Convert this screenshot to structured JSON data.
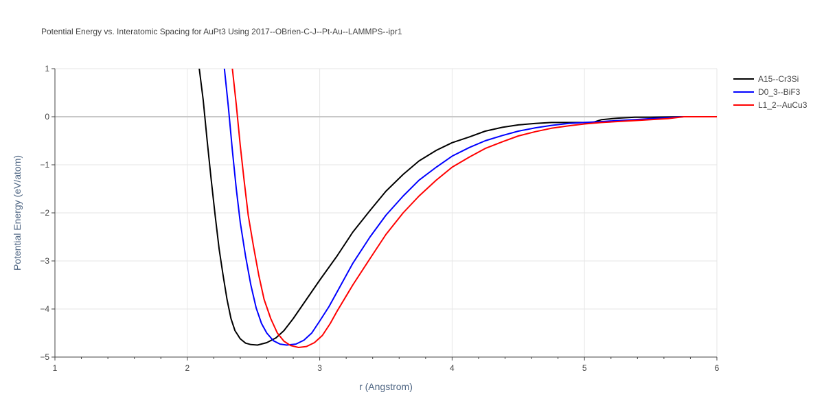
{
  "chart_data": {
    "type": "line",
    "title": "Potential Energy vs. Interatomic Spacing for AuPt3 Using 2017--OBrien-C-J--Pt-Au--LAMMPS--ipr1",
    "xlabel": "r (Angstrom)",
    "ylabel": "Potential Energy (eV/atom)",
    "xlim": [
      1,
      6
    ],
    "ylim": [
      -5,
      1
    ],
    "xticks": [
      1,
      2,
      3,
      4,
      5,
      6
    ],
    "xtick_labels": [
      "1",
      "2",
      "3",
      "4",
      "5",
      "6"
    ],
    "yticks": [
      1,
      0,
      -1,
      -2,
      -3,
      -4,
      -5
    ],
    "ytick_labels": [
      "1",
      "0",
      "−1",
      "−2",
      "−3",
      "−4",
      "−5"
    ],
    "grid": true,
    "legend_position": "top-right",
    "series": [
      {
        "name": "A15--Cr3Si",
        "color": "#000000",
        "points": [
          [
            2.09,
            1.0
          ],
          [
            2.12,
            0.35
          ],
          [
            2.15,
            -0.5
          ],
          [
            2.18,
            -1.3
          ],
          [
            2.21,
            -2.05
          ],
          [
            2.24,
            -2.75
          ],
          [
            2.27,
            -3.3
          ],
          [
            2.3,
            -3.8
          ],
          [
            2.33,
            -4.2
          ],
          [
            2.36,
            -4.45
          ],
          [
            2.4,
            -4.62
          ],
          [
            2.44,
            -4.71
          ],
          [
            2.48,
            -4.74
          ],
          [
            2.53,
            -4.75
          ],
          [
            2.6,
            -4.7
          ],
          [
            2.67,
            -4.6
          ],
          [
            2.73,
            -4.45
          ],
          [
            2.8,
            -4.2
          ],
          [
            2.9,
            -3.8
          ],
          [
            3.0,
            -3.4
          ],
          [
            3.13,
            -2.9
          ],
          [
            3.25,
            -2.4
          ],
          [
            3.38,
            -1.95
          ],
          [
            3.5,
            -1.55
          ],
          [
            3.63,
            -1.2
          ],
          [
            3.75,
            -0.92
          ],
          [
            3.88,
            -0.7
          ],
          [
            4.0,
            -0.54
          ],
          [
            4.13,
            -0.42
          ],
          [
            4.25,
            -0.3
          ],
          [
            4.38,
            -0.22
          ],
          [
            4.5,
            -0.17
          ],
          [
            4.63,
            -0.14
          ],
          [
            4.75,
            -0.12
          ],
          [
            4.88,
            -0.12
          ],
          [
            5.0,
            -0.12
          ],
          [
            5.06,
            -0.12
          ],
          [
            5.13,
            -0.06
          ],
          [
            5.25,
            -0.03
          ],
          [
            5.38,
            -0.01
          ],
          [
            5.5,
            -0.01
          ],
          [
            5.75,
            0.0
          ],
          [
            6.0,
            0.0
          ]
        ]
      },
      {
        "name": "D0_3--BiF3",
        "color": "#0000ff",
        "points": [
          [
            2.28,
            1.0
          ],
          [
            2.31,
            0.2
          ],
          [
            2.34,
            -0.7
          ],
          [
            2.37,
            -1.5
          ],
          [
            2.4,
            -2.2
          ],
          [
            2.44,
            -2.9
          ],
          [
            2.48,
            -3.5
          ],
          [
            2.52,
            -3.98
          ],
          [
            2.56,
            -4.3
          ],
          [
            2.6,
            -4.5
          ],
          [
            2.65,
            -4.66
          ],
          [
            2.7,
            -4.73
          ],
          [
            2.75,
            -4.75
          ],
          [
            2.82,
            -4.73
          ],
          [
            2.88,
            -4.65
          ],
          [
            2.94,
            -4.5
          ],
          [
            3.0,
            -4.25
          ],
          [
            3.07,
            -3.95
          ],
          [
            3.13,
            -3.65
          ],
          [
            3.25,
            -3.05
          ],
          [
            3.38,
            -2.5
          ],
          [
            3.5,
            -2.05
          ],
          [
            3.63,
            -1.65
          ],
          [
            3.75,
            -1.32
          ],
          [
            3.88,
            -1.05
          ],
          [
            4.0,
            -0.82
          ],
          [
            4.13,
            -0.64
          ],
          [
            4.25,
            -0.5
          ],
          [
            4.38,
            -0.39
          ],
          [
            4.5,
            -0.3
          ],
          [
            4.63,
            -0.23
          ],
          [
            4.75,
            -0.18
          ],
          [
            4.88,
            -0.14
          ],
          [
            5.0,
            -0.12
          ],
          [
            5.13,
            -0.1
          ],
          [
            5.25,
            -0.08
          ],
          [
            5.38,
            -0.06
          ],
          [
            5.5,
            -0.04
          ],
          [
            5.63,
            -0.02
          ],
          [
            5.75,
            0.0
          ],
          [
            6.0,
            0.0
          ]
        ]
      },
      {
        "name": "L1_2--AuCu3",
        "color": "#ff0000",
        "points": [
          [
            2.34,
            1.0
          ],
          [
            2.37,
            0.25
          ],
          [
            2.4,
            -0.6
          ],
          [
            2.43,
            -1.35
          ],
          [
            2.46,
            -2.05
          ],
          [
            2.5,
            -2.7
          ],
          [
            2.54,
            -3.3
          ],
          [
            2.58,
            -3.8
          ],
          [
            2.63,
            -4.2
          ],
          [
            2.68,
            -4.5
          ],
          [
            2.73,
            -4.67
          ],
          [
            2.78,
            -4.76
          ],
          [
            2.84,
            -4.8
          ],
          [
            2.9,
            -4.78
          ],
          [
            2.96,
            -4.7
          ],
          [
            3.02,
            -4.55
          ],
          [
            3.08,
            -4.3
          ],
          [
            3.13,
            -4.05
          ],
          [
            3.25,
            -3.5
          ],
          [
            3.38,
            -2.95
          ],
          [
            3.5,
            -2.45
          ],
          [
            3.63,
            -2.0
          ],
          [
            3.75,
            -1.65
          ],
          [
            3.88,
            -1.32
          ],
          [
            4.0,
            -1.05
          ],
          [
            4.13,
            -0.84
          ],
          [
            4.25,
            -0.66
          ],
          [
            4.38,
            -0.52
          ],
          [
            4.5,
            -0.4
          ],
          [
            4.63,
            -0.31
          ],
          [
            4.75,
            -0.24
          ],
          [
            4.88,
            -0.19
          ],
          [
            5.0,
            -0.15
          ],
          [
            5.13,
            -0.12
          ],
          [
            5.25,
            -0.1
          ],
          [
            5.38,
            -0.08
          ],
          [
            5.5,
            -0.06
          ],
          [
            5.63,
            -0.04
          ],
          [
            5.75,
            0.0
          ],
          [
            6.0,
            0.0
          ]
        ]
      }
    ]
  }
}
